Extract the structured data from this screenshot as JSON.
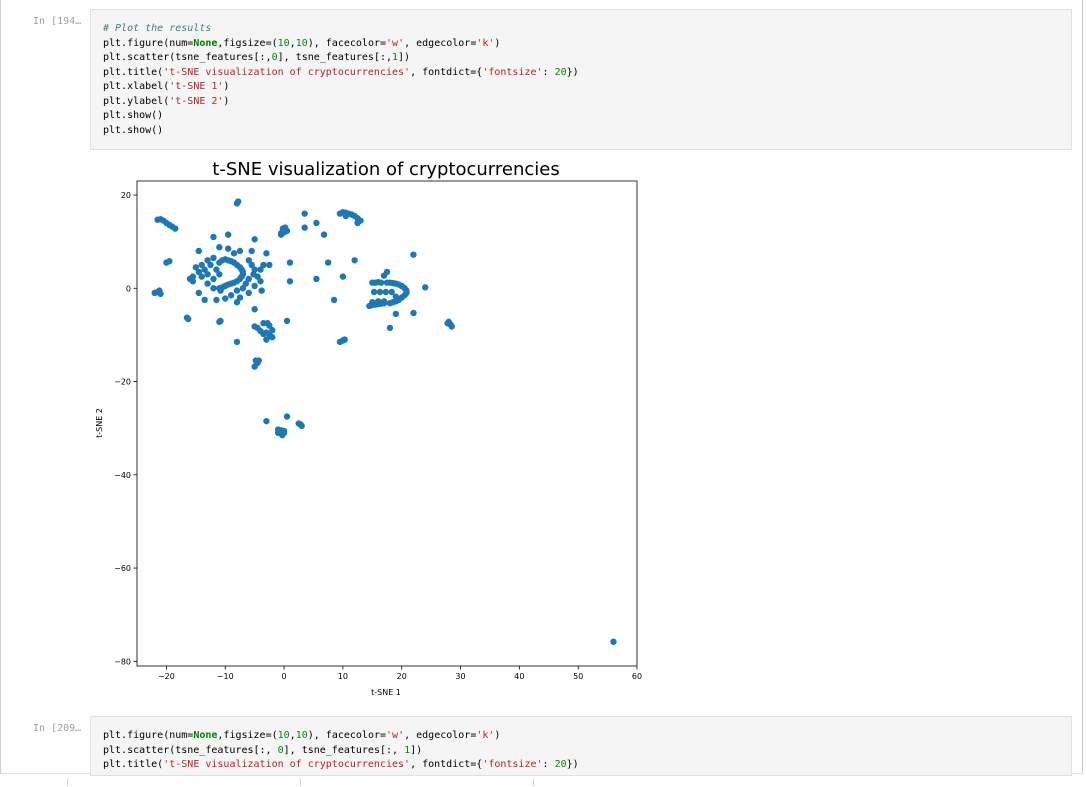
{
  "cells": [
    {
      "prompt": "In [194…",
      "lines": [
        [
          [
            "comment",
            "# Plot the results"
          ]
        ],
        [
          [
            "txt",
            "plt.figure(num="
          ],
          [
            "kw",
            "None"
          ],
          [
            "txt",
            ",figsize=("
          ],
          [
            "num",
            "10"
          ],
          [
            "txt",
            ","
          ],
          [
            "num",
            "10"
          ],
          [
            "txt",
            "), facecolor="
          ],
          [
            "str",
            "'w'"
          ],
          [
            "txt",
            ", edgecolor="
          ],
          [
            "str",
            "'k'"
          ],
          [
            "txt",
            ")"
          ]
        ],
        [
          [
            "txt",
            "plt.scatter(tsne_features[:,"
          ],
          [
            "num",
            "0"
          ],
          [
            "txt",
            "], tsne_features[:,"
          ],
          [
            "num",
            "1"
          ],
          [
            "txt",
            "])"
          ]
        ],
        [
          [
            "txt",
            "plt.title("
          ],
          [
            "str",
            "'t-SNE visualization of cryptocurrencies'"
          ],
          [
            "txt",
            ", fontdict={"
          ],
          [
            "str",
            "'fontsize'"
          ],
          [
            "txt",
            ": "
          ],
          [
            "num",
            "20"
          ],
          [
            "txt",
            "})"
          ]
        ],
        [
          [
            "txt",
            "plt.xlabel("
          ],
          [
            "str",
            "'t-SNE 1'"
          ],
          [
            "txt",
            ")"
          ]
        ],
        [
          [
            "txt",
            "plt.ylabel("
          ],
          [
            "str",
            "'t-SNE 2'"
          ],
          [
            "txt",
            ")"
          ]
        ],
        [
          [
            "txt",
            "plt.show()"
          ]
        ],
        [
          [
            "txt",
            "plt.show()"
          ]
        ]
      ]
    },
    {
      "prompt": "In [209…",
      "lines": [
        [
          [
            "txt",
            "plt.figure(num="
          ],
          [
            "kw",
            "None"
          ],
          [
            "txt",
            ",figsize=("
          ],
          [
            "num",
            "10"
          ],
          [
            "txt",
            ","
          ],
          [
            "num",
            "10"
          ],
          [
            "txt",
            "), facecolor="
          ],
          [
            "str",
            "'w'"
          ],
          [
            "txt",
            ", edgecolor="
          ],
          [
            "str",
            "'k'"
          ],
          [
            "txt",
            ")"
          ]
        ],
        [
          [
            "txt",
            "plt.scatter(tsne_features[:, "
          ],
          [
            "num",
            "0"
          ],
          [
            "txt",
            "], tsne_features[:, "
          ],
          [
            "num",
            "1"
          ],
          [
            "txt",
            "])"
          ]
        ],
        [
          [
            "txt",
            "plt.title("
          ],
          [
            "str",
            "'t-SNE visualization of cryptocurrencies'"
          ],
          [
            "txt",
            ", fontdict={"
          ],
          [
            "str",
            "'fontsize'"
          ],
          [
            "txt",
            ": "
          ],
          [
            "num",
            "20"
          ],
          [
            "txt",
            "})"
          ]
        ]
      ]
    }
  ],
  "syntax_colors": {
    "comment": "#408080",
    "kw": "#008000",
    "str": "#ba2121",
    "num": "#008800",
    "txt": "#000000"
  },
  "chart_data": {
    "type": "scatter",
    "title": "t-SNE visualization of cryptocurrencies",
    "xlabel": "t-SNE 1",
    "ylabel": "t-SNE 2",
    "xlim": [
      -25,
      60
    ],
    "ylim": [
      -81,
      23
    ],
    "xticks": [
      -20,
      -10,
      0,
      10,
      20,
      30,
      40,
      50,
      60
    ],
    "yticks": [
      20,
      0,
      -20,
      -40,
      -60,
      -80
    ],
    "xtick_labels": [
      "−20",
      "−10",
      "0",
      "10",
      "20",
      "30",
      "40",
      "50",
      "60"
    ],
    "ytick_labels": [
      "20",
      "0",
      "−20",
      "−40",
      "−60",
      "−80"
    ],
    "grid": false,
    "marker_color": "#1f77b4",
    "points": [
      [
        -21.5,
        14.7
      ],
      [
        -21,
        14.8
      ],
      [
        -20.5,
        14.5
      ],
      [
        -20,
        14
      ],
      [
        -19.5,
        13.6
      ],
      [
        -19,
        13.2
      ],
      [
        -18.5,
        12.8
      ],
      [
        -20,
        5.5
      ],
      [
        -19.5,
        5.8
      ],
      [
        -22,
        -1
      ],
      [
        -21.5,
        -0.8
      ],
      [
        -21,
        -1.2
      ],
      [
        -21.2,
        -0.5
      ],
      [
        -16.5,
        -6.3
      ],
      [
        -16.3,
        -6.6
      ],
      [
        -16,
        2
      ],
      [
        -15.5,
        1.5
      ],
      [
        -15,
        4.5
      ],
      [
        -14.5,
        3.5
      ],
      [
        -14,
        5
      ],
      [
        -14,
        2.5
      ],
      [
        -13.5,
        4
      ],
      [
        -13,
        6
      ],
      [
        -13,
        3
      ],
      [
        -12.5,
        5
      ],
      [
        -12,
        6.5
      ],
      [
        -12,
        2
      ],
      [
        -11.5,
        4
      ],
      [
        -11,
        3
      ],
      [
        -11,
        5.5
      ],
      [
        -10.5,
        6
      ],
      [
        -10,
        6.2
      ],
      [
        -9.5,
        6
      ],
      [
        -9,
        5.8
      ],
      [
        -8.5,
        5.5
      ],
      [
        -8,
        5
      ],
      [
        -7.5,
        4.5
      ],
      [
        -7.2,
        4
      ],
      [
        -7,
        3.5
      ],
      [
        -7,
        3
      ],
      [
        -7.2,
        2.5
      ],
      [
        -7.5,
        2
      ],
      [
        -8,
        1.5
      ],
      [
        -8.5,
        1.2
      ],
      [
        -9,
        1
      ],
      [
        -9.5,
        0.8
      ],
      [
        -10,
        0.5
      ],
      [
        -10.5,
        0.2
      ],
      [
        -11,
        0
      ],
      [
        -10.8,
        -0.5
      ],
      [
        -8.5,
        7.5
      ],
      [
        -9.5,
        8.5
      ],
      [
        -11,
        8.8
      ],
      [
        -12,
        11
      ],
      [
        -14.5,
        8
      ],
      [
        -7.5,
        8
      ],
      [
        -5.5,
        8
      ],
      [
        -5,
        10.5
      ],
      [
        -6,
        6
      ],
      [
        -5.5,
        5
      ],
      [
        -5,
        4
      ],
      [
        -5.2,
        3
      ],
      [
        -6,
        2
      ],
      [
        -6.5,
        1
      ],
      [
        -7,
        0
      ],
      [
        -8,
        -0.5
      ],
      [
        -9,
        -1.5
      ],
      [
        -10,
        -2.2
      ],
      [
        -11.5,
        -2.5
      ],
      [
        -13.5,
        -2.5
      ],
      [
        -14.5,
        -1
      ],
      [
        -12,
        0
      ],
      [
        -13,
        1
      ],
      [
        -15.5,
        2.5
      ],
      [
        -4.5,
        2.5
      ],
      [
        -4,
        4
      ],
      [
        -3.5,
        5
      ],
      [
        -3,
        7.5
      ],
      [
        -2.5,
        5
      ],
      [
        -4,
        1.5
      ],
      [
        -5,
        0.5
      ],
      [
        -6,
        -1
      ],
      [
        -7.5,
        -2
      ],
      [
        -8,
        -3
      ],
      [
        -11,
        -7.2
      ],
      [
        -10.8,
        -7
      ],
      [
        -8,
        -11.5
      ],
      [
        -9.5,
        11.5
      ],
      [
        -5,
        -4.5
      ],
      [
        -3.5,
        -7.5
      ],
      [
        -2.8,
        -7.5
      ],
      [
        -2.5,
        -8
      ],
      [
        -2,
        -9
      ],
      [
        -2.5,
        -10
      ],
      [
        -3,
        -9.5
      ],
      [
        -3.5,
        -9.8
      ],
      [
        -4,
        -9.2
      ],
      [
        -4.5,
        -8.5
      ],
      [
        -5,
        -8.2
      ],
      [
        -3,
        -11
      ],
      [
        -2,
        -10.5
      ],
      [
        -4.8,
        -15.5
      ],
      [
        -4.3,
        -15.5
      ],
      [
        -4.5,
        -16
      ],
      [
        -5,
        -16.8
      ],
      [
        -8,
        18.2
      ],
      [
        -7.8,
        18.6
      ],
      [
        -0.5,
        11.8
      ],
      [
        0,
        12
      ],
      [
        0.5,
        12.3
      ],
      [
        -0.2,
        12.8
      ],
      [
        0.2,
        13
      ],
      [
        -0.5,
        11.5
      ],
      [
        1,
        5.5
      ],
      [
        1,
        1.5
      ],
      [
        -3.8,
        -0.5
      ],
      [
        0.5,
        -7
      ],
      [
        3.5,
        16
      ],
      [
        3.5,
        13
      ],
      [
        5.5,
        14
      ],
      [
        6.8,
        11.5
      ],
      [
        7.5,
        5.5
      ],
      [
        8.5,
        -2.5
      ],
      [
        10,
        2.5
      ],
      [
        12,
        6
      ],
      [
        5.5,
        2
      ],
      [
        9.5,
        16
      ],
      [
        10,
        16.3
      ],
      [
        10.5,
        16.2
      ],
      [
        11,
        16
      ],
      [
        11.5,
        15.8
      ],
      [
        12,
        15.5
      ],
      [
        12.5,
        15
      ],
      [
        13,
        14.5
      ],
      [
        12.5,
        14
      ],
      [
        10.5,
        15.5
      ],
      [
        9.5,
        -11.5
      ],
      [
        10,
        -11.2
      ],
      [
        10.3,
        -11
      ],
      [
        15,
        1.2
      ],
      [
        15.5,
        1.2
      ],
      [
        16,
        1.3
      ],
      [
        16.5,
        1.2
      ],
      [
        17.5,
        1.2
      ],
      [
        18,
        1.2
      ],
      [
        18.5,
        1.1
      ],
      [
        19,
        1
      ],
      [
        19.5,
        0.8
      ],
      [
        20,
        0.5
      ],
      [
        20.5,
        0
      ],
      [
        20.8,
        -0.5
      ],
      [
        20.8,
        -1
      ],
      [
        20.5,
        -1.5
      ],
      [
        20,
        -2
      ],
      [
        19.5,
        -2.5
      ],
      [
        19,
        -2.8
      ],
      [
        18.5,
        -3
      ],
      [
        18,
        -3.2
      ],
      [
        17,
        -3.2
      ],
      [
        16.5,
        -3.3
      ],
      [
        16,
        -3.4
      ],
      [
        15.5,
        -3.5
      ],
      [
        15,
        -3.6
      ],
      [
        14.5,
        -3.8
      ],
      [
        15,
        -3
      ],
      [
        16,
        -2.8
      ],
      [
        17,
        -2.8
      ],
      [
        15.3,
        -0.8
      ],
      [
        16.3,
        -0.8
      ],
      [
        17.3,
        -0.8
      ],
      [
        18.3,
        -0.8
      ],
      [
        17.5,
        3.5
      ],
      [
        17,
        2.7
      ],
      [
        19,
        -1.8
      ],
      [
        22,
        7.2
      ],
      [
        22,
        -5.3
      ],
      [
        24,
        0.2
      ],
      [
        19,
        -5.5
      ],
      [
        18,
        -8.5
      ],
      [
        27.8,
        -7.5
      ],
      [
        28,
        -7.2
      ],
      [
        28.3,
        -7.8
      ],
      [
        28.5,
        -8.2
      ],
      [
        -0.5,
        -31
      ],
      [
        0,
        -31
      ],
      [
        -1,
        -31
      ],
      [
        -0.5,
        -30.5
      ],
      [
        -1,
        -30.3
      ],
      [
        0,
        -30.6
      ],
      [
        -0.3,
        -31.5
      ],
      [
        0.5,
        -27.5
      ],
      [
        -3,
        -28.5
      ],
      [
        2.5,
        -29
      ],
      [
        3,
        -29.5
      ],
      [
        2.8,
        -29.2
      ],
      [
        56,
        -75.8
      ]
    ]
  }
}
